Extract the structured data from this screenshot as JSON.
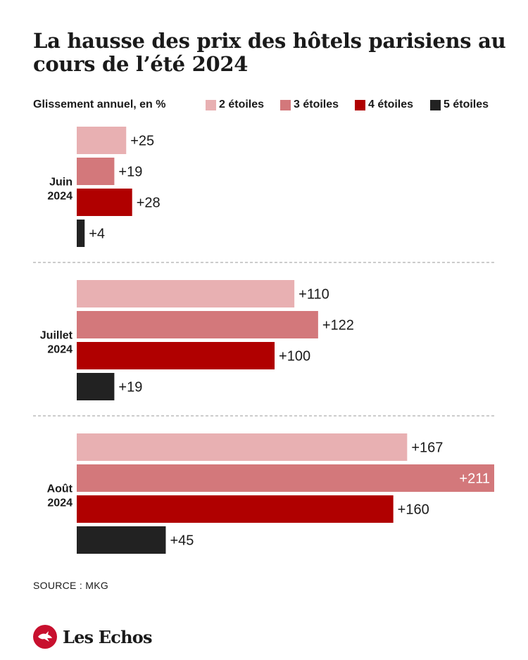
{
  "colors": {
    "2_etoiles": "#e8b0b2",
    "3_etoiles": "#d3787b",
    "4_etoiles": "#b00000",
    "5_etoiles": "#222222",
    "text": "#1a1a1a",
    "divider": "#999999",
    "logo": "#c8102e"
  },
  "source": "SOURCE : MKG",
  "logo": {
    "text": "Les Echos",
    "icon": "les-echos-bird-icon"
  },
  "chart_data": {
    "type": "bar",
    "orientation": "horizontal",
    "title": "La hausse des prix des hôtels parisiens au cours de l’été 2024",
    "subtitle": "Glissement annuel, en %",
    "legend_placement": "top",
    "grid": false,
    "xlim": [
      0,
      211
    ],
    "categories": [
      {
        "line1": "Juin",
        "line2": "2024"
      },
      {
        "line1": "Juillet",
        "line2": "2024"
      },
      {
        "line1": "Août",
        "line2": "2024"
      }
    ],
    "series": [
      {
        "name": "2 étoiles",
        "values": [
          25,
          110,
          167
        ],
        "labels": [
          "+25",
          "+110",
          "+167"
        ]
      },
      {
        "name": "3 étoiles",
        "values": [
          19,
          122,
          211
        ],
        "labels": [
          "+19",
          "+122",
          "+211"
        ]
      },
      {
        "name": "4 étoiles",
        "values": [
          28,
          100,
          160
        ],
        "labels": [
          "+28",
          "+100",
          "+160"
        ]
      },
      {
        "name": "5 étoiles",
        "values": [
          4,
          19,
          45
        ],
        "labels": [
          "+4",
          "+19",
          "+45"
        ]
      }
    ]
  }
}
